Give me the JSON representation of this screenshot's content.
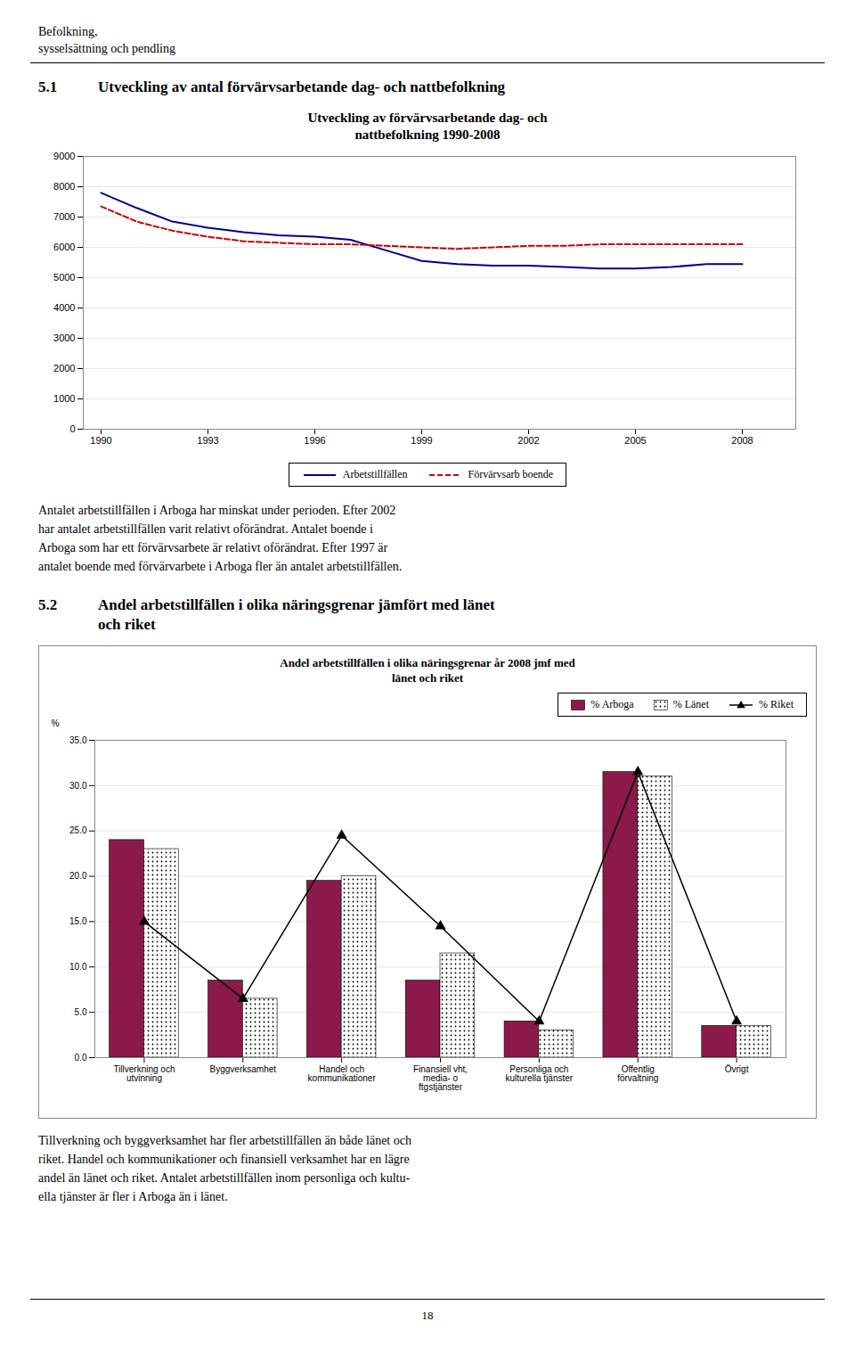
{
  "chart_data": [
    {
      "type": "line",
      "title": "Utveckling av förvärvsarbetande dag- och\nnattbefolkning 1990-2008",
      "x": [
        1990,
        1991,
        1992,
        1993,
        1994,
        1995,
        1996,
        1997,
        1998,
        1999,
        2000,
        2001,
        2002,
        2003,
        2004,
        2005,
        2006,
        2007,
        2008
      ],
      "xlim": [
        1989.5,
        2009.5
      ],
      "xticks": [
        1990,
        1993,
        1996,
        1999,
        2002,
        2005,
        2008
      ],
      "ylim": [
        0,
        9000
      ],
      "yticks": [
        0,
        1000,
        2000,
        3000,
        4000,
        5000,
        6000,
        7000,
        8000,
        9000
      ],
      "grid": "y",
      "legend": "bottom",
      "series": [
        {
          "name": "Arbetstillfällen",
          "color": "#00008B",
          "line_style": "solid",
          "values": [
            7800,
            7300,
            6850,
            6650,
            6500,
            6400,
            6350,
            6250,
            5900,
            5550,
            5450,
            5400,
            5400,
            5350,
            5300,
            5300,
            5350,
            5450,
            5450
          ]
        },
        {
          "name": "Förvärvsarb boende",
          "color": "#CC0000",
          "line_style": "dashed",
          "values": [
            7350,
            6850,
            6550,
            6350,
            6200,
            6150,
            6100,
            6100,
            6050,
            6000,
            5950,
            6000,
            6050,
            6050,
            6100,
            6100,
            6100,
            6100,
            6100
          ]
        }
      ],
      "annotations": [
        "Befolkning,",
        "sysselsättning och pendling",
        "5.1",
        "Utveckling av antal förvärvsarbetande dag- och nattbefolkning",
        "Antalet arbetstillfällen i Arboga har minskat under perioden. Efter 2002\nhar antalet arbetstillfällen varit relativt oförändrat. Antalet boende i\nArboga som har ett förvärvsarbete är relativt oförändrat. Efter 1997 är\nantalet boende med förvärvarbete i Arboga fler än antalet arbetstillfällen."
      ]
    },
    {
      "type": "bar",
      "title": "Andel arbetstillfällen i olika näringsgrenar år 2008 jmf med\nlänet och riket",
      "ylabel": "%",
      "categories": [
        "Tillverkning och\nutvinning",
        "Byggverksamhet",
        "Handel och\nkommunikationer",
        "Finansiell vht,\nmedia- o\nftgstjänster",
        "Personliga och\nkulturella tjänster",
        "Offentlig\nförvaltning",
        "Övrigt"
      ],
      "ylim": [
        0,
        35
      ],
      "yticks": [
        {
          "value": 0,
          "label": "0.0"
        },
        {
          "value": 5,
          "label": "5.0"
        },
        {
          "value": 10,
          "label": "10.0"
        },
        {
          "value": 15,
          "label": "15.0"
        },
        {
          "value": 20,
          "label": "20.0"
        },
        {
          "value": 25,
          "label": "25.0"
        },
        {
          "value": 30,
          "label": "30.0"
        },
        {
          "value": 35,
          "label": "35.0"
        }
      ],
      "grid": "y",
      "legend": "top-right",
      "series": [
        {
          "name": "% Arboga",
          "type": "bar",
          "color": "#8B1A4A",
          "values": [
            24.0,
            8.5,
            19.5,
            8.5,
            4.0,
            31.5,
            3.5
          ]
        },
        {
          "name": "% Länet",
          "type": "bar",
          "color": "white",
          "values": [
            23.0,
            6.5,
            20.0,
            11.5,
            3.0,
            31.0,
            3.5
          ]
        },
        {
          "name": "% Riket",
          "type": "line",
          "color": "black",
          "marker": "triangle",
          "values": [
            15.0,
            6.5,
            24.5,
            14.5,
            4.0,
            31.5,
            4.0
          ]
        }
      ],
      "annotations": [
        "5.2",
        "Andel arbetstillfällen i olika näringsgrenar jämfört med länet",
        "och riket",
        "Tillverkning och byggverksamhet har fler arbetstillfällen än både länet och\nriket. Handel och kommunikationer och finansiell verksamhet har en lägre\nandel än länet och riket. Antalet arbetstillfällen inom personliga och kultu-\nella tjänster är fler i Arboga än i länet.",
        "18"
      ]
    }
  ]
}
